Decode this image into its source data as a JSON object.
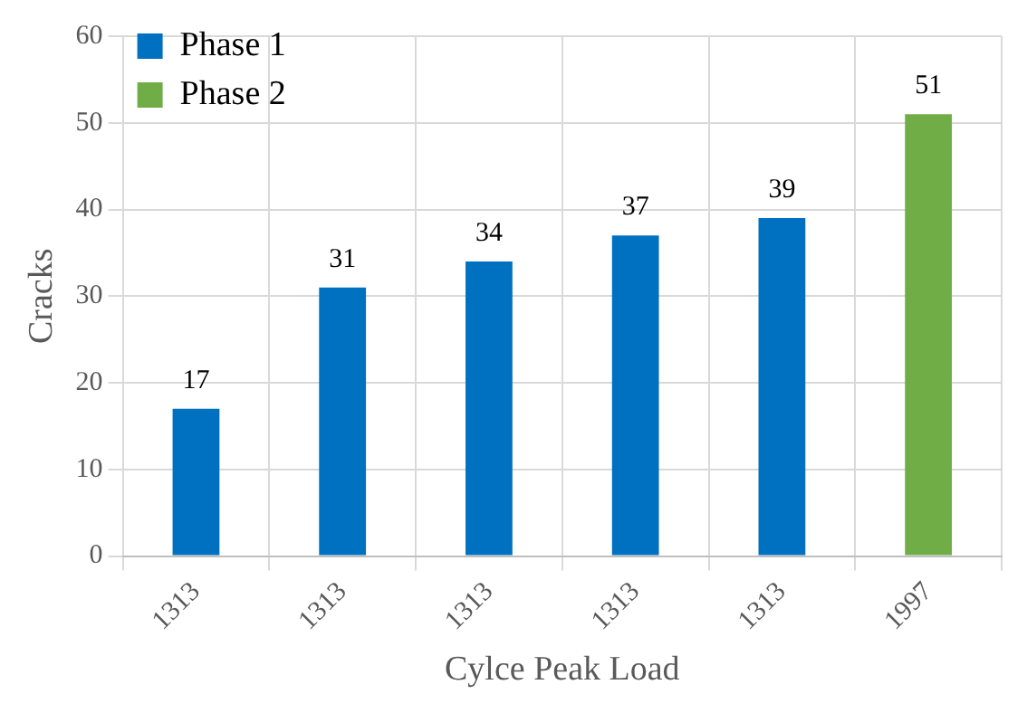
{
  "chart_data": {
    "type": "bar",
    "xlabel": "Cylce Peak Load",
    "ylabel": "Cracks",
    "categories": [
      "1313",
      "1313",
      "1313",
      "1313",
      "1313",
      "1997"
    ],
    "series": [
      {
        "name": "Phase 1",
        "color": "#0070c0",
        "values": [
          17,
          31,
          34,
          37,
          39,
          null
        ]
      },
      {
        "name": "Phase 2",
        "color": "#70ad47",
        "values": [
          null,
          null,
          null,
          null,
          null,
          51
        ]
      }
    ],
    "ylim": [
      0,
      60
    ],
    "yticks": [
      0,
      10,
      20,
      30,
      40,
      50,
      60
    ],
    "grid": true,
    "legend": "top left",
    "data_labels": true
  }
}
